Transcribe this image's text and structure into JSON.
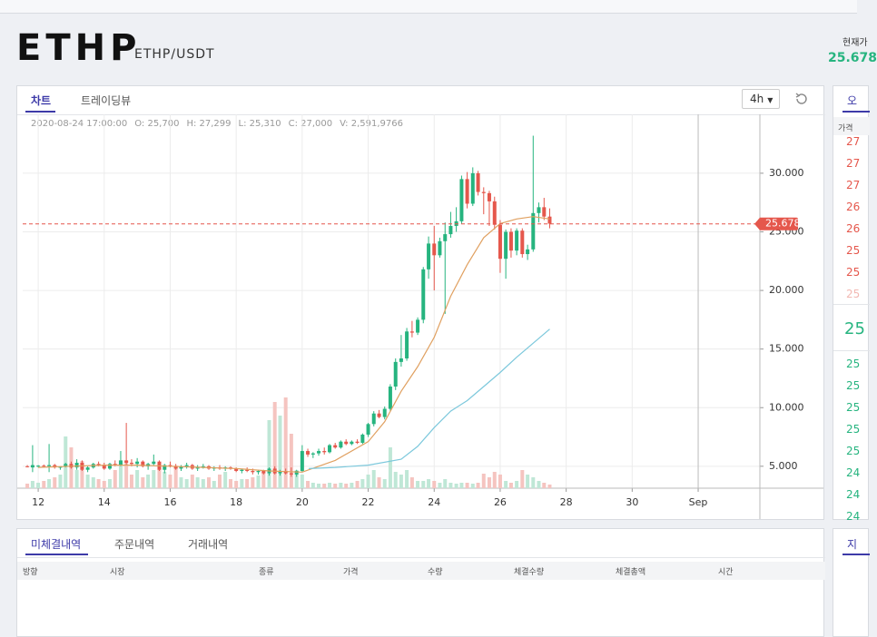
{
  "header": {
    "symbol": "ETHP",
    "pair": "ETHP/USDT",
    "price_caption": "현재가",
    "price": "25.678"
  },
  "chart_panel": {
    "tabs": [
      "차트",
      "트레이딩뷰"
    ],
    "interval": "4h",
    "info": [
      "2020-08-24 17:00:00",
      "O: 25,700",
      "H: 27,299",
      "L: 25,310",
      "C: 27,000",
      "V: 2,591,9766"
    ]
  },
  "chart_data": {
    "type": "candlestick",
    "grid": true,
    "up_color": "#26b47f",
    "down_color": "#e5574c",
    "up_volume_color": "#bfe7d6",
    "down_volume_color": "#f5c4c0",
    "xlim": [
      11.53,
      33.87
    ],
    "ylim": [
      3130,
      33630
    ],
    "xticks": [
      12,
      14,
      16,
      18,
      20,
      22,
      24,
      26,
      28,
      30,
      {
        "value": 32,
        "label": "Sep"
      }
    ],
    "yticks": [
      {
        "value": 5000,
        "label": "5.000"
      },
      {
        "value": 10000,
        "label": "10.000"
      },
      {
        "value": 15000,
        "label": "15.000"
      },
      {
        "value": 20000,
        "label": "20.000"
      },
      {
        "value": 25000,
        "label": "25.000"
      },
      {
        "value": 30000,
        "label": "30.000"
      }
    ],
    "last_price": {
      "value": 25678,
      "label": "25.678"
    },
    "x": [
      11.67,
      11.83,
      12,
      12.17,
      12.33,
      12.5,
      12.67,
      12.83,
      13,
      13.17,
      13.33,
      13.5,
      13.67,
      13.83,
      14,
      14.17,
      14.33,
      14.5,
      14.67,
      14.83,
      15,
      15.17,
      15.33,
      15.5,
      15.67,
      15.83,
      16,
      16.17,
      16.33,
      16.5,
      16.67,
      16.83,
      17,
      17.17,
      17.33,
      17.5,
      17.67,
      17.83,
      18,
      18.17,
      18.33,
      18.5,
      18.67,
      18.83,
      19,
      19.17,
      19.33,
      19.5,
      19.67,
      19.83,
      20,
      20.17,
      20.33,
      20.5,
      20.67,
      20.83,
      21,
      21.17,
      21.33,
      21.5,
      21.67,
      21.83,
      22,
      22.17,
      22.33,
      22.5,
      22.67,
      22.83,
      23,
      23.17,
      23.33,
      23.5,
      23.67,
      23.83,
      24,
      24.17,
      24.33,
      24.5,
      24.67,
      24.83,
      25,
      25.17,
      25.33,
      25.5,
      25.67,
      25.83,
      26,
      26.17,
      26.33,
      26.5,
      26.67,
      26.83,
      27,
      27.17,
      27.33,
      27.5
    ],
    "ohlc": [
      [
        5000,
        5100,
        4900,
        4950
      ],
      [
        4900,
        6800,
        4500,
        5100
      ],
      [
        5000,
        5100,
        4900,
        5050
      ],
      [
        5050,
        5150,
        4950,
        5000
      ],
      [
        5000,
        6900,
        4500,
        5100
      ],
      [
        5100,
        5200,
        4800,
        4900
      ],
      [
        4900,
        5000,
        4700,
        4950
      ],
      [
        4950,
        5300,
        4900,
        5200
      ],
      [
        5200,
        5400,
        4800,
        4900
      ],
      [
        4900,
        5600,
        4700,
        5300
      ],
      [
        5300,
        5500,
        4600,
        4700
      ],
      [
        4700,
        5000,
        4500,
        4900
      ],
      [
        4900,
        5300,
        4800,
        5200
      ],
      [
        5200,
        5400,
        5000,
        5100
      ],
      [
        5100,
        5300,
        4700,
        4800
      ],
      [
        4800,
        5300,
        4700,
        5200
      ],
      [
        5200,
        5500,
        5000,
        5100
      ],
      [
        5100,
        6300,
        5000,
        5500
      ],
      [
        5500,
        8700,
        5100,
        5300
      ],
      [
        5300,
        5600,
        5000,
        5200
      ],
      [
        5200,
        5700,
        4900,
        5400
      ],
      [
        5400,
        5500,
        4900,
        5000
      ],
      [
        5000,
        5300,
        4700,
        5200
      ],
      [
        5200,
        6000,
        5100,
        5400
      ],
      [
        5400,
        5500,
        4600,
        4700
      ],
      [
        4700,
        5200,
        4400,
        5100
      ],
      [
        5100,
        5400,
        4900,
        5000
      ],
      [
        5000,
        5200,
        4700,
        4800
      ],
      [
        4800,
        5100,
        4600,
        5000
      ],
      [
        5000,
        5300,
        4800,
        5100
      ],
      [
        5100,
        5200,
        4700,
        4800
      ],
      [
        4800,
        5100,
        4600,
        4900
      ],
      [
        4900,
        5200,
        4800,
        5000
      ],
      [
        5000,
        5100,
        4700,
        4800
      ],
      [
        4800,
        5000,
        4600,
        4900
      ],
      [
        4900,
        5100,
        4700,
        4800
      ],
      [
        4800,
        5000,
        4600,
        4900
      ],
      [
        4900,
        5000,
        4700,
        4800
      ],
      [
        4800,
        4900,
        4500,
        4600
      ],
      [
        4600,
        4800,
        4400,
        4700
      ],
      [
        4700,
        4900,
        4500,
        4600
      ],
      [
        4600,
        4800,
        4300,
        4500
      ],
      [
        4500,
        4700,
        4300,
        4600
      ],
      [
        4600,
        4700,
        4300,
        4400
      ],
      [
        4400,
        4900,
        4200,
        4800
      ],
      [
        4800,
        5000,
        4300,
        4400
      ],
      [
        4400,
        4700,
        4200,
        4600
      ],
      [
        4600,
        4800,
        4300,
        4400
      ],
      [
        4400,
        4900,
        4100,
        4300
      ],
      [
        4300,
        4700,
        4100,
        4600
      ],
      [
        4600,
        6800,
        4500,
        6300
      ],
      [
        6300,
        6500,
        5800,
        6000
      ],
      [
        6000,
        6200,
        5700,
        6100
      ],
      [
        6100,
        6500,
        5900,
        6300
      ],
      [
        6300,
        6600,
        6000,
        6200
      ],
      [
        6200,
        6900,
        6100,
        6800
      ],
      [
        6800,
        7000,
        6500,
        6600
      ],
      [
        6600,
        7200,
        6500,
        7100
      ],
      [
        7100,
        7300,
        6800,
        6900
      ],
      [
        6900,
        7200,
        6800,
        7100
      ],
      [
        7100,
        7300,
        6900,
        7000
      ],
      [
        7000,
        7800,
        6900,
        7700
      ],
      [
        7700,
        8700,
        7500,
        8600
      ],
      [
        8600,
        9700,
        8400,
        9500
      ],
      [
        9500,
        9800,
        9100,
        9200
      ],
      [
        9200,
        10100,
        9000,
        9900
      ],
      [
        9900,
        12000,
        9700,
        11800
      ],
      [
        11800,
        14200,
        11500,
        13900
      ],
      [
        13900,
        16200,
        13500,
        14200
      ],
      [
        14200,
        16800,
        14000,
        16500
      ],
      [
        16500,
        17400,
        16000,
        16400
      ],
      [
        16400,
        17700,
        16200,
        17500
      ],
      [
        17500,
        22000,
        17200,
        21800
      ],
      [
        21800,
        24600,
        21000,
        24000
      ],
      [
        24000,
        25500,
        20000,
        23000
      ],
      [
        23000,
        24500,
        22800,
        24200
      ],
      [
        24200,
        25800,
        18000,
        24800
      ],
      [
        24800,
        26700,
        24500,
        25500
      ],
      [
        25500,
        27100,
        25000,
        25900
      ],
      [
        25900,
        29800,
        25700,
        29500
      ],
      [
        29500,
        30100,
        27000,
        27400
      ],
      [
        27400,
        30500,
        27200,
        30000
      ],
      [
        30000,
        30200,
        28100,
        28400
      ],
      [
        28400,
        28800,
        26500,
        28300
      ],
      [
        28300,
        28500,
        25500,
        27600
      ],
      [
        27600,
        28000,
        25200,
        25600
      ],
      [
        25600,
        26000,
        21500,
        22700
      ],
      [
        22700,
        25200,
        21000,
        25000
      ],
      [
        25000,
        25300,
        22800,
        23400
      ],
      [
        23400,
        25300,
        23000,
        25100
      ],
      [
        25100,
        25300,
        22800,
        23100
      ],
      [
        23100,
        23900,
        22600,
        23500
      ],
      [
        23500,
        33200,
        23300,
        26600
      ],
      [
        26600,
        27500,
        25800,
        27100
      ],
      [
        27100,
        27900,
        26000,
        26300
      ],
      [
        26300,
        27000,
        25300,
        25700
      ]
    ],
    "volume": [
      5,
      8,
      6,
      8,
      10,
      12,
      15,
      57,
      45,
      20,
      30,
      15,
      12,
      10,
      8,
      10,
      20,
      25,
      30,
      15,
      20,
      12,
      15,
      20,
      25,
      18,
      15,
      25,
      12,
      10,
      15,
      12,
      10,
      12,
      8,
      15,
      18,
      10,
      8,
      10,
      10,
      12,
      14,
      20,
      75,
      95,
      80,
      100,
      60,
      20,
      15,
      8,
      6,
      5,
      5,
      6,
      5,
      6,
      5,
      6,
      8,
      10,
      15,
      20,
      12,
      10,
      45,
      18,
      15,
      20,
      12,
      8,
      8,
      10,
      8,
      6,
      10,
      6,
      5,
      6,
      6,
      5,
      6,
      16,
      12,
      18,
      15,
      8,
      6,
      8,
      20,
      15,
      12,
      8,
      6,
      4
    ],
    "ma": [
      {
        "color": "#e0a060",
        "x": [
          12,
          13,
          14,
          15,
          16,
          17,
          18,
          19,
          20,
          21,
          22,
          22.5,
          23,
          23.5,
          24,
          24.5,
          25,
          25.5,
          26,
          26.5,
          27,
          27.5
        ],
        "values": [
          4900,
          5000,
          5100,
          5100,
          5000,
          4900,
          4800,
          4600,
          4500,
          5500,
          7100,
          8800,
          11400,
          13500,
          16000,
          19500,
          22200,
          24500,
          25700,
          26100,
          26300,
          26100
        ]
      },
      {
        "color": "#7cc8dc",
        "x": [
          20.2,
          21,
          22,
          23,
          23.5,
          24,
          24.5,
          25,
          25.5,
          26,
          26.5,
          27,
          27.5
        ],
        "values": [
          4800,
          4900,
          5100,
          5600,
          6700,
          8300,
          9700,
          10600,
          11800,
          13000,
          14300,
          15500,
          16700
        ]
      }
    ]
  },
  "orders_panel": {
    "tabs": [
      "미체결내역",
      "주문내역",
      "거래내역"
    ],
    "columns": [
      "방향",
      "시장",
      "종류",
      "가격",
      "수량",
      "체결수량",
      "체결총액",
      "시간"
    ]
  },
  "side_panel": {
    "tab": "오",
    "price_header": "가격",
    "asks": [
      "27",
      "27",
      "27",
      "26",
      "26",
      "25",
      "25",
      "25"
    ],
    "last": "25",
    "bids": [
      "25",
      "25",
      "25",
      "25",
      "25",
      "24",
      "24",
      "24"
    ],
    "bottom_tab": "지"
  }
}
